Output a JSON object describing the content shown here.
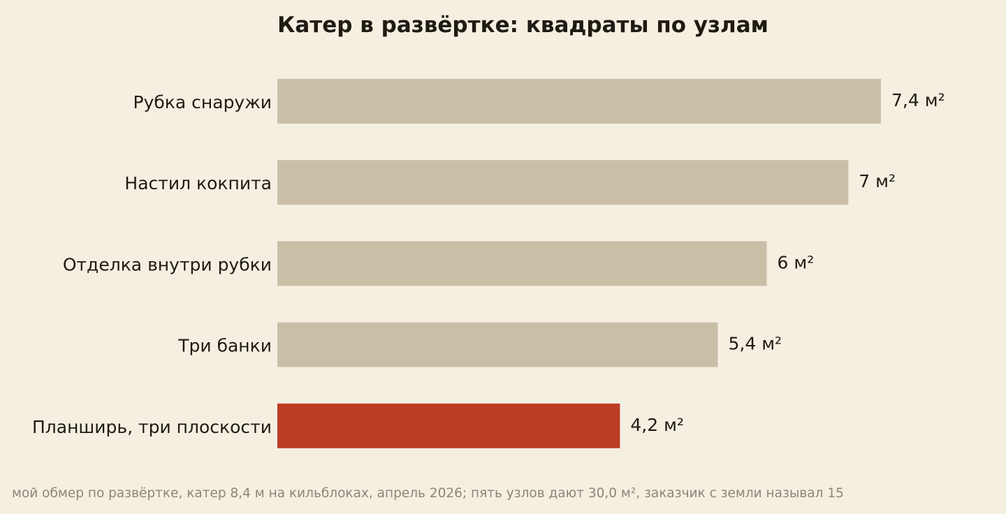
{
  "chart_data": {
    "type": "bar",
    "orientation": "horizontal",
    "title": "Катер в развёртке: квадраты по узлам",
    "categories": [
      "Рубка снаружи",
      "Настил кокпита",
      "Отделка внутри рубки",
      "Три банки",
      "Планширь, три плоскости"
    ],
    "values": [
      7.4,
      7.0,
      6.0,
      5.4,
      4.2
    ],
    "value_labels": [
      "7,4 м²",
      "7 м²",
      "6 м²",
      "5,4 м²",
      "4,2 м²"
    ],
    "unit": "м²",
    "xlim": [
      0,
      7.4
    ],
    "grid": false,
    "axes_visible": false,
    "highlight_index": 4,
    "colors": {
      "bar": "#c9bfa7",
      "highlight": "#bd3d27",
      "background": "#f5efe2",
      "text": "#1f1a12",
      "footnote": "#8c8578"
    }
  },
  "footnote": "мой обмер по развёртке, катер 8,4 м на кильблоках, апрель 2026; пять узлов дают 30,0 м², заказчик с земли называл 15"
}
